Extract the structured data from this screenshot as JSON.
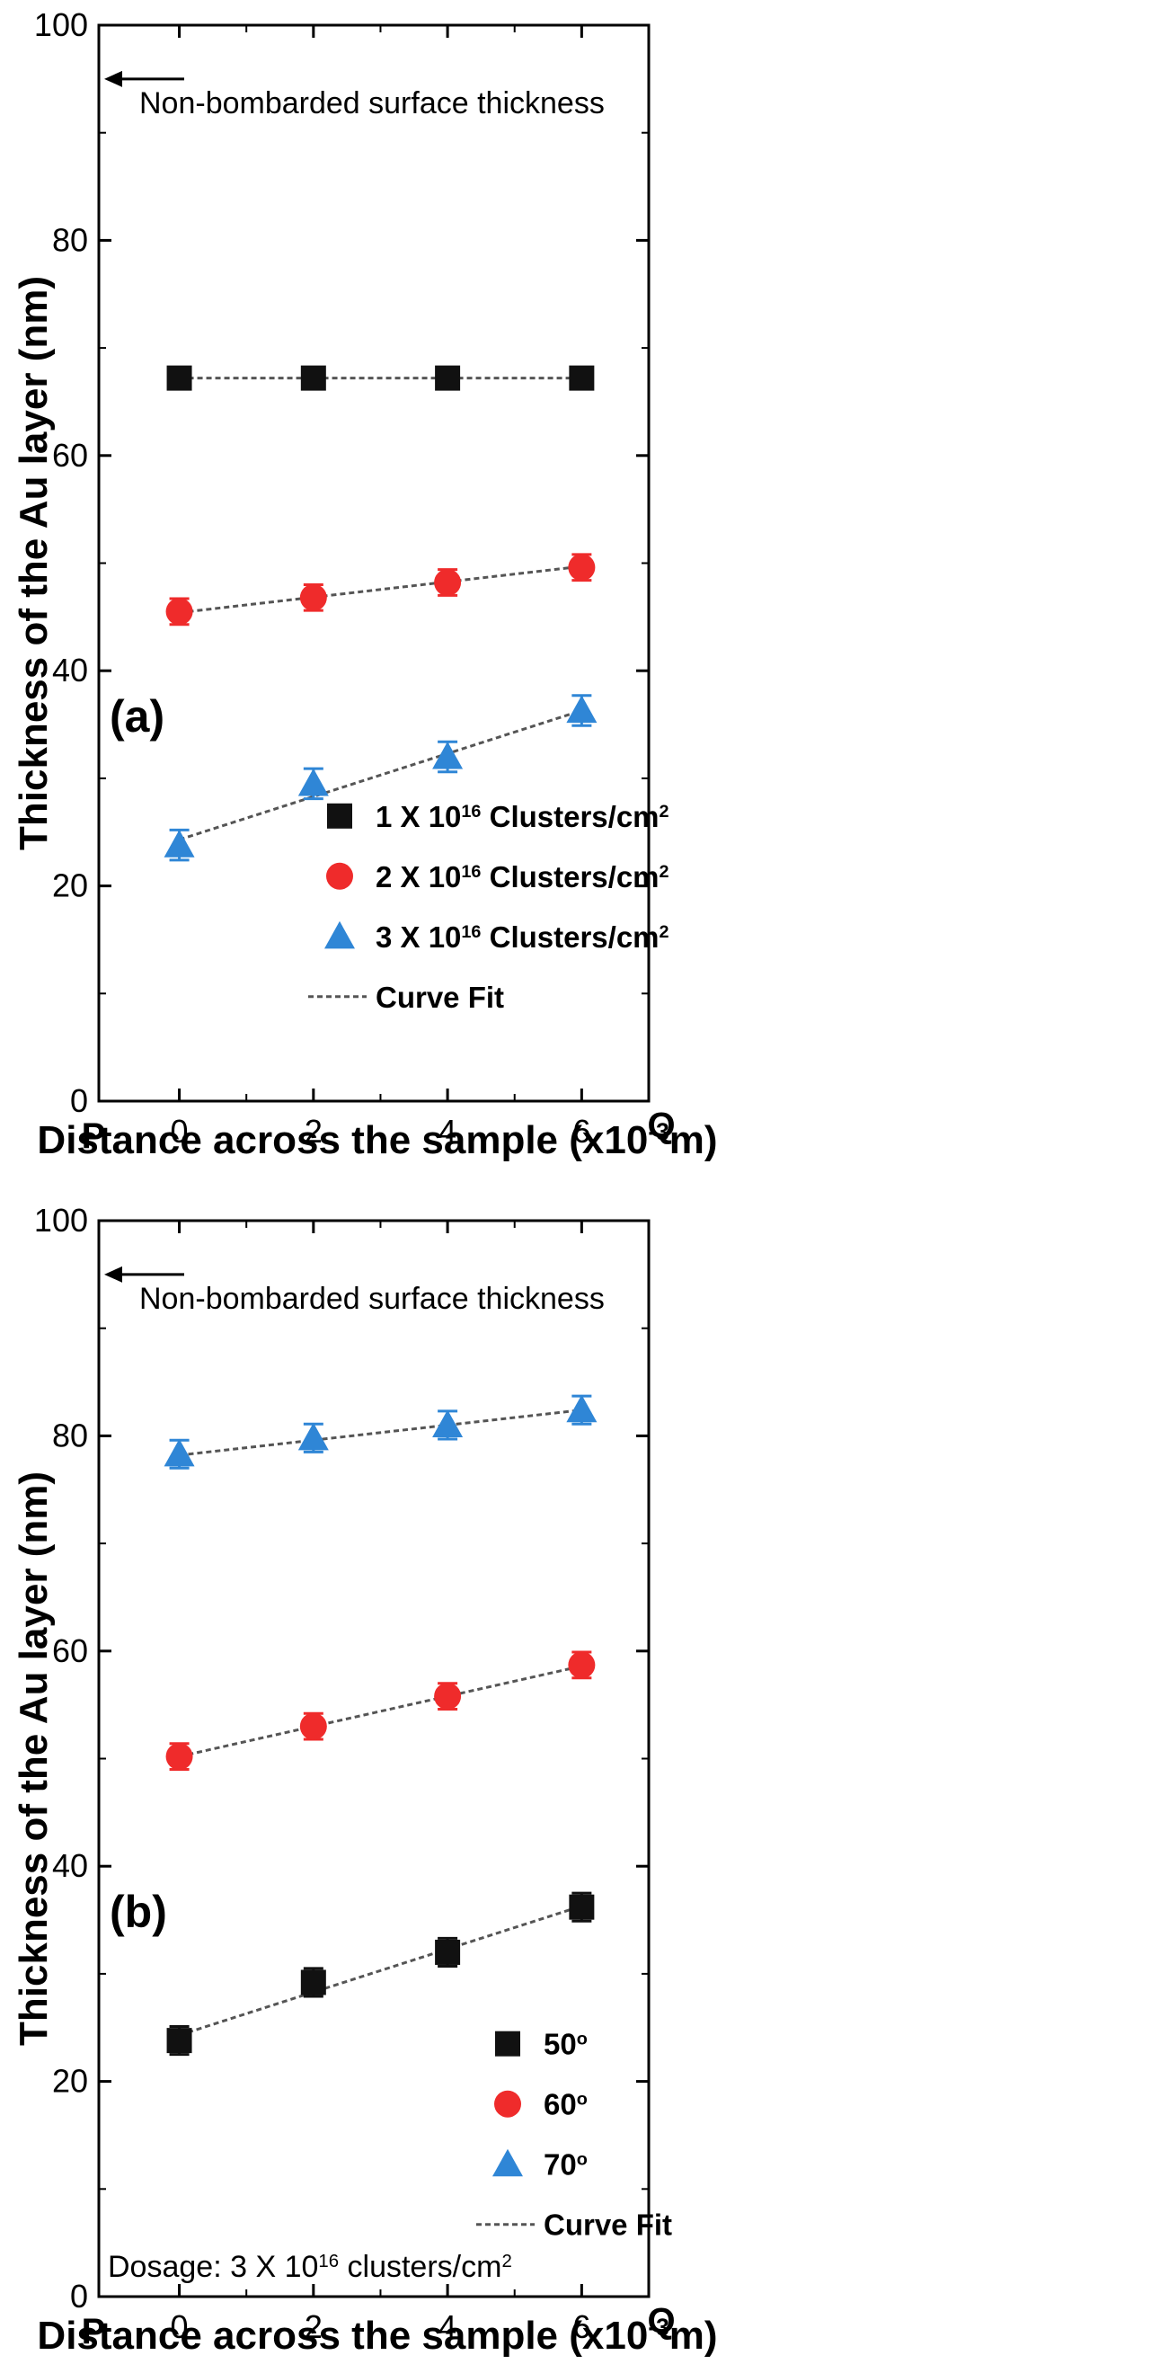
{
  "chart_data": [
    {
      "type": "scatter",
      "panel_label": "(a)",
      "xlabel": "Distance across the sample (x10",
      "xlabel_exp": "-3",
      "xlabel_unit": "m)",
      "ylabel": "Thickness of the Au layer (nm)",
      "xlim": [
        -1.2,
        7.0
      ],
      "ylim": [
        0,
        100
      ],
      "x_ticks": [
        0,
        2,
        4,
        6
      ],
      "y_ticks": [
        0,
        20,
        40,
        60,
        80,
        100
      ],
      "edge_labels": {
        "left": "P",
        "right": "Q"
      },
      "reference_annotation": "Non-bombarded surface thickness",
      "reference_value": 95,
      "legend_position": "bottom-right",
      "series": [
        {
          "name": "1 X 10",
          "exponent": "16",
          "unit": " Clusters/cm",
          "unit_exp": "2",
          "marker": "square",
          "color": "#111111",
          "x": [
            0,
            2,
            4,
            6
          ],
          "y": [
            67.2,
            67.2,
            67.2,
            67.2
          ],
          "error": [
            1.0,
            1.0,
            1.0,
            1.0
          ],
          "fit": [
            67.2,
            67.2
          ]
        },
        {
          "name": "2 X 10",
          "exponent": "16",
          "unit": " Clusters/cm",
          "unit_exp": "2",
          "marker": "circle",
          "color": "#ef2b2b",
          "x": [
            0,
            2,
            4,
            6
          ],
          "y": [
            45.5,
            46.8,
            48.2,
            49.6
          ],
          "error": [
            1.2,
            1.2,
            1.2,
            1.2
          ],
          "fit": [
            45.4,
            49.7
          ]
        },
        {
          "name": "3 X 10",
          "exponent": "16",
          "unit": " Clusters/cm",
          "unit_exp": "2",
          "marker": "triangle",
          "color": "#2f86d6",
          "x": [
            0,
            2,
            4,
            6
          ],
          "y": [
            23.8,
            29.5,
            32.0,
            36.3
          ],
          "error": [
            1.4,
            1.4,
            1.4,
            1.4
          ],
          "fit": [
            24.3,
            36.3
          ]
        }
      ],
      "fit_label": "Curve Fit"
    },
    {
      "type": "scatter",
      "panel_label": "(b)",
      "xlabel": "Distance across the sample (x10",
      "xlabel_exp": "-3",
      "xlabel_unit": "m)",
      "ylabel": "Thickness of the Au layer (nm)",
      "xlim": [
        -1.2,
        7.0
      ],
      "ylim": [
        0,
        100
      ],
      "x_ticks": [
        0,
        2,
        4,
        6
      ],
      "y_ticks": [
        0,
        20,
        40,
        60,
        80,
        100
      ],
      "edge_labels": {
        "left": "P",
        "right": "Q"
      },
      "reference_annotation": "Non-bombarded surface thickness",
      "reference_value": 95,
      "legend_position": "bottom-right",
      "dosage_note": {
        "text": "Dosage: 3 X 10",
        "exp": "16",
        "unit": " clusters/cm",
        "unit_exp": "2"
      },
      "series": [
        {
          "name": "50",
          "exponent": "o",
          "unit": "",
          "unit_exp": "",
          "marker": "square",
          "color": "#111111",
          "x": [
            0,
            2,
            4,
            6
          ],
          "y": [
            23.8,
            29.2,
            32.0,
            36.2
          ],
          "error": [
            1.3,
            1.3,
            1.3,
            1.3
          ],
          "fit": [
            24.3,
            36.3
          ]
        },
        {
          "name": "60",
          "exponent": "o",
          "unit": "",
          "unit_exp": "",
          "marker": "circle",
          "color": "#ef2b2b",
          "x": [
            0,
            2,
            4,
            6
          ],
          "y": [
            50.2,
            53.0,
            55.8,
            58.7
          ],
          "error": [
            1.2,
            1.2,
            1.2,
            1.2
          ],
          "fit": [
            50.2,
            58.6
          ]
        },
        {
          "name": "70",
          "exponent": "o",
          "unit": "",
          "unit_exp": "",
          "marker": "triangle",
          "color": "#2f86d6",
          "x": [
            0,
            2,
            4,
            6
          ],
          "y": [
            78.3,
            79.8,
            81.0,
            82.4
          ],
          "error": [
            1.3,
            1.3,
            1.3,
            1.3
          ],
          "fit": [
            78.2,
            82.4
          ]
        }
      ],
      "fit_label": "Curve Fit"
    }
  ]
}
